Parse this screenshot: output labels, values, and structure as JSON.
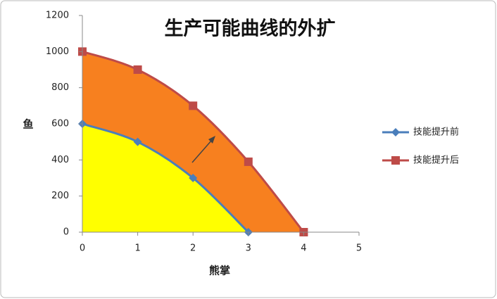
{
  "chart_data": {
    "type": "line",
    "title": "生产可能曲线的外扩",
    "x_label": "熊掌",
    "y_label": "鱼",
    "x": [
      0,
      1,
      2,
      3,
      4
    ],
    "series": [
      {
        "name": "技能提升前",
        "color": "#4a7ebb",
        "fill": "#ffff00",
        "marker": "diamond",
        "values": [
          600,
          500,
          300,
          0,
          null
        ]
      },
      {
        "name": "技能提升后",
        "color": "#be4b48",
        "fill": "#f7801f",
        "marker": "square",
        "values": [
          1000,
          900,
          700,
          390,
          0
        ]
      }
    ],
    "xlim": [
      0,
      5
    ],
    "xticks": [
      0,
      1,
      2,
      3,
      4,
      5
    ],
    "ylim": [
      0,
      1200
    ],
    "yticks": [
      0,
      200,
      400,
      600,
      800,
      1000,
      1200
    ],
    "grid": false,
    "legend": "right"
  }
}
